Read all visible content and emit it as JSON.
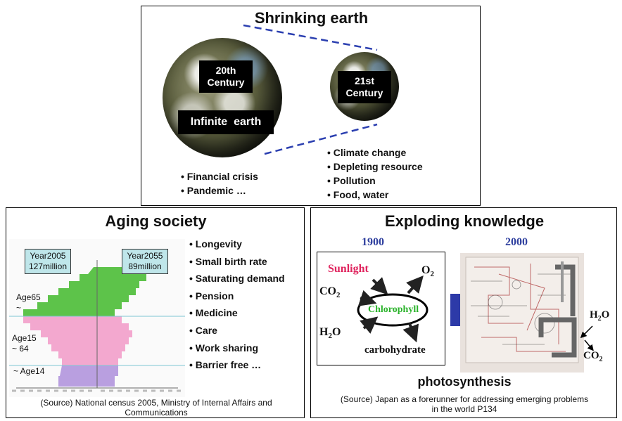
{
  "top_panel": {
    "title": "Shrinking earth",
    "earth_20th_label": "20th Century",
    "earth_21st_label": "21st Century",
    "infinite_label": "Infinite  earth",
    "left_bullets": [
      "Financial crisis",
      "Pandemic …"
    ],
    "right_bullets": [
      "Climate change",
      "Depleting resource",
      "Pollution",
      "Food, water"
    ]
  },
  "left_panel": {
    "title": "Aging society",
    "year_left": [
      "Year2005",
      "127million"
    ],
    "year_right": [
      "Year2055",
      "89million"
    ],
    "age_labels": [
      {
        "line1": "Age65",
        "line2": "~"
      },
      {
        "line1": "Age15",
        "line2": "~ 64"
      },
      {
        "line1": "~ Age14",
        "line2": ""
      }
    ],
    "bullets": [
      "Longevity",
      "Small birth rate",
      "Saturating demand",
      "Pension",
      "Medicine",
      "Care",
      "Work sharing",
      "Barrier free …"
    ],
    "source": "(Source) National census 2005, Ministry of Internal Affairs and Communications",
    "colors": {
      "elderly": "#5dc34a",
      "working": "#f3a8cf",
      "young": "#b99fe0"
    }
  },
  "right_panel": {
    "title": "Exploding knowledge",
    "year_1900": "1900",
    "year_2000": "2000",
    "sunlight": "Sunlight",
    "o2": "O",
    "o2_sub": "2",
    "co2": "CO",
    "co2_sub": "2",
    "chlorophyll": "Chlorophyll",
    "h2o_prefix": "H",
    "h2o_sub": "2",
    "h2o_suffix": "O",
    "carbohydrate": "carbohydrate",
    "right_h2o_prefix": "H",
    "right_h2o_sub": "2",
    "right_h2o_suffix": "O",
    "right_co2": "CO",
    "right_co2_sub": "2",
    "caption": "photosynthesis",
    "source": "(Source) Japan as a forerunner for addressing emerging problems in the world P134",
    "colors": {
      "year": "#2e3f9e",
      "sunlight": "#e0245e",
      "chlorophyll": "#2bb32b",
      "arrow": "#2d3aa8"
    }
  }
}
